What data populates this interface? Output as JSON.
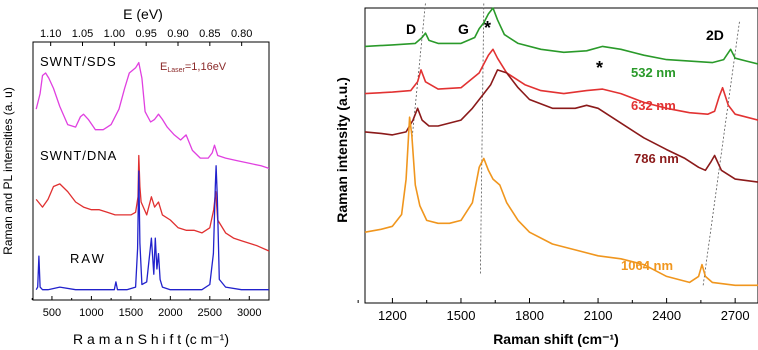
{
  "chart_data": [
    {
      "type": "line",
      "xlabel": "R a m a n  S h i f t (c m⁻¹)",
      "ylabel": "Raman and PL intensities (a. u)",
      "top_axis_label": "E (eV)",
      "top_ticks": [
        "1.10",
        "1.05",
        "1.00",
        "0.95",
        "0.90",
        "0.85",
        "0.80"
      ],
      "top_tick_values": [
        1.1,
        1.05,
        1.0,
        0.95,
        0.9,
        0.85,
        0.8
      ],
      "xlim": [
        260,
        3250
      ],
      "ylim": [
        0,
        100
      ],
      "x_ticks": [
        500,
        1000,
        1500,
        2000,
        2500,
        3000
      ],
      "annotation": {
        "prefix": "E",
        "subscript": "Laser",
        "value": "=1,16eV",
        "color": "#8b2a2a"
      },
      "series": [
        {
          "name": "SWNT/SDS",
          "color": "#e040e0",
          "x": [
            300,
            350,
            380,
            420,
            460,
            520,
            600,
            700,
            800,
            860,
            900,
            960,
            1050,
            1150,
            1250,
            1350,
            1420,
            1480,
            1520,
            1560,
            1600,
            1640,
            1680,
            1750,
            1800,
            1850,
            1900,
            1960,
            2050,
            2130,
            2200,
            2280,
            2380,
            2480,
            2530,
            2560,
            2600,
            2700,
            2850,
            3000,
            3150,
            3250
          ],
          "y": [
            74,
            80,
            87,
            88,
            86,
            82,
            75,
            68,
            67,
            71,
            72,
            70,
            66,
            66,
            68,
            74,
            82,
            88,
            89,
            90,
            92,
            86,
            73,
            69,
            70,
            72,
            70,
            67,
            64,
            62,
            64,
            58,
            55,
            55,
            57,
            60,
            56,
            55,
            54,
            53,
            52,
            51
          ]
        },
        {
          "name": "SWNT/DNA",
          "color": "#e03030",
          "x": [
            300,
            380,
            450,
            520,
            600,
            700,
            800,
            900,
            1000,
            1100,
            1200,
            1300,
            1400,
            1500,
            1560,
            1590,
            1600,
            1615,
            1630,
            1700,
            1760,
            1800,
            1850,
            1900,
            2000,
            2100,
            2200,
            2300,
            2400,
            2500,
            2550,
            2575,
            2600,
            2700,
            2800,
            2900,
            3000,
            3100,
            3250
          ],
          "y": [
            39,
            36,
            39,
            44,
            45,
            42,
            38,
            36,
            35,
            35,
            34,
            33,
            33,
            33,
            34,
            40,
            56,
            44,
            38,
            33,
            40,
            36,
            38,
            33,
            31,
            28,
            27,
            27,
            26,
            28,
            35,
            42,
            31,
            26,
            24,
            23,
            22,
            21,
            19
          ]
        },
        {
          "name": "RAW",
          "color": "#2222cc",
          "x": [
            300,
            320,
            335,
            350,
            380,
            450,
            600,
            800,
            1000,
            1200,
            1290,
            1310,
            1330,
            1450,
            1560,
            1585,
            1600,
            1615,
            1640,
            1700,
            1760,
            1790,
            1810,
            1830,
            1850,
            1870,
            1900,
            2000,
            2200,
            2400,
            2500,
            2545,
            2570,
            2580,
            2595,
            2620,
            2700,
            2900,
            3100,
            3250
          ],
          "y": [
            4,
            5,
            17,
            5,
            4,
            4,
            5,
            4,
            4,
            4,
            4,
            7,
            4,
            4,
            5,
            20,
            50,
            22,
            6,
            7,
            24,
            10,
            24,
            12,
            18,
            8,
            5,
            4,
            4,
            4,
            6,
            18,
            44,
            52,
            40,
            8,
            5,
            4,
            4,
            4
          ]
        }
      ],
      "series_labels": [
        "SWNT/SDS",
        "SWNT/DNA",
        "RAW"
      ]
    },
    {
      "type": "line",
      "xlabel": "Raman shift (cm⁻¹)",
      "ylabel": "Raman intensity (a.u.)",
      "xlim": [
        1080,
        2800
      ],
      "ylim": [
        0,
        100
      ],
      "x_ticks": [
        1200,
        1500,
        1800,
        2100,
        2400,
        2700
      ],
      "peak_labels": [
        "D",
        "G",
        "*",
        "*",
        "2D"
      ],
      "series": [
        {
          "name": "532 nm",
          "color": "#2a9a2a",
          "x": [
            1080,
            1200,
            1300,
            1330,
            1345,
            1360,
            1400,
            1500,
            1560,
            1580,
            1600,
            1620,
            1640,
            1660,
            1690,
            1750,
            1850,
            1950,
            2050,
            2120,
            2200,
            2300,
            2400,
            2500,
            2600,
            2650,
            2680,
            2700,
            2750,
            2800
          ],
          "y": [
            87,
            87.5,
            88,
            90,
            91.5,
            89,
            88,
            88,
            90,
            93,
            95,
            98,
            100,
            96,
            91,
            88,
            86,
            85,
            85.5,
            87,
            86,
            84,
            82.5,
            82,
            81.5,
            82.5,
            86,
            83,
            82,
            81
          ]
        },
        {
          "name": "632 nm",
          "color": "#e23232",
          "x": [
            1080,
            1200,
            1280,
            1310,
            1325,
            1345,
            1400,
            1500,
            1580,
            1600,
            1620,
            1640,
            1660,
            1700,
            1780,
            1850,
            1950,
            2050,
            2120,
            2200,
            2300,
            2400,
            2500,
            2580,
            2610,
            2630,
            2645,
            2670,
            2700,
            2800
          ],
          "y": [
            71,
            71.5,
            72,
            75,
            79,
            75,
            72.5,
            73,
            78,
            81,
            84,
            86,
            83,
            78,
            74,
            72,
            71,
            72,
            72.5,
            71,
            68,
            66,
            64.5,
            64,
            65,
            70,
            73,
            67,
            64,
            62
          ]
        },
        {
          "name": "786 nm",
          "color": "#8b1a1a",
          "x": [
            1080,
            1150,
            1200,
            1260,
            1290,
            1310,
            1330,
            1360,
            1400,
            1500,
            1550,
            1600,
            1630,
            1660,
            1700,
            1750,
            1800,
            1900,
            2000,
            2050,
            2100,
            2200,
            2300,
            2400,
            2480,
            2540,
            2570,
            2595,
            2610,
            2640,
            2700,
            2800
          ],
          "y": [
            58,
            57.5,
            57,
            58,
            62,
            66,
            62,
            60,
            60,
            62,
            66,
            71,
            74,
            79,
            78,
            73,
            69,
            66,
            66,
            67,
            66,
            61,
            56,
            52,
            49,
            46,
            45,
            48,
            50,
            45,
            42,
            41
          ]
        },
        {
          "name": "1064 nm",
          "color": "#f0961e",
          "x": [
            1080,
            1150,
            1200,
            1240,
            1260,
            1275,
            1285,
            1300,
            1320,
            1350,
            1400,
            1450,
            1500,
            1550,
            1580,
            1600,
            1620,
            1640,
            1670,
            1700,
            1750,
            1800,
            1900,
            2000,
            2100,
            2200,
            2300,
            2400,
            2500,
            2540,
            2555,
            2570,
            2600,
            2700,
            2800
          ],
          "y": [
            24,
            25,
            26,
            30,
            42,
            63,
            57,
            40,
            33,
            28,
            27,
            27,
            28,
            34,
            46,
            49,
            45,
            42,
            40,
            34,
            28,
            24,
            20,
            18,
            16,
            15,
            13,
            9,
            7,
            9,
            13,
            9,
            7,
            6,
            6
          ]
        }
      ]
    }
  ]
}
